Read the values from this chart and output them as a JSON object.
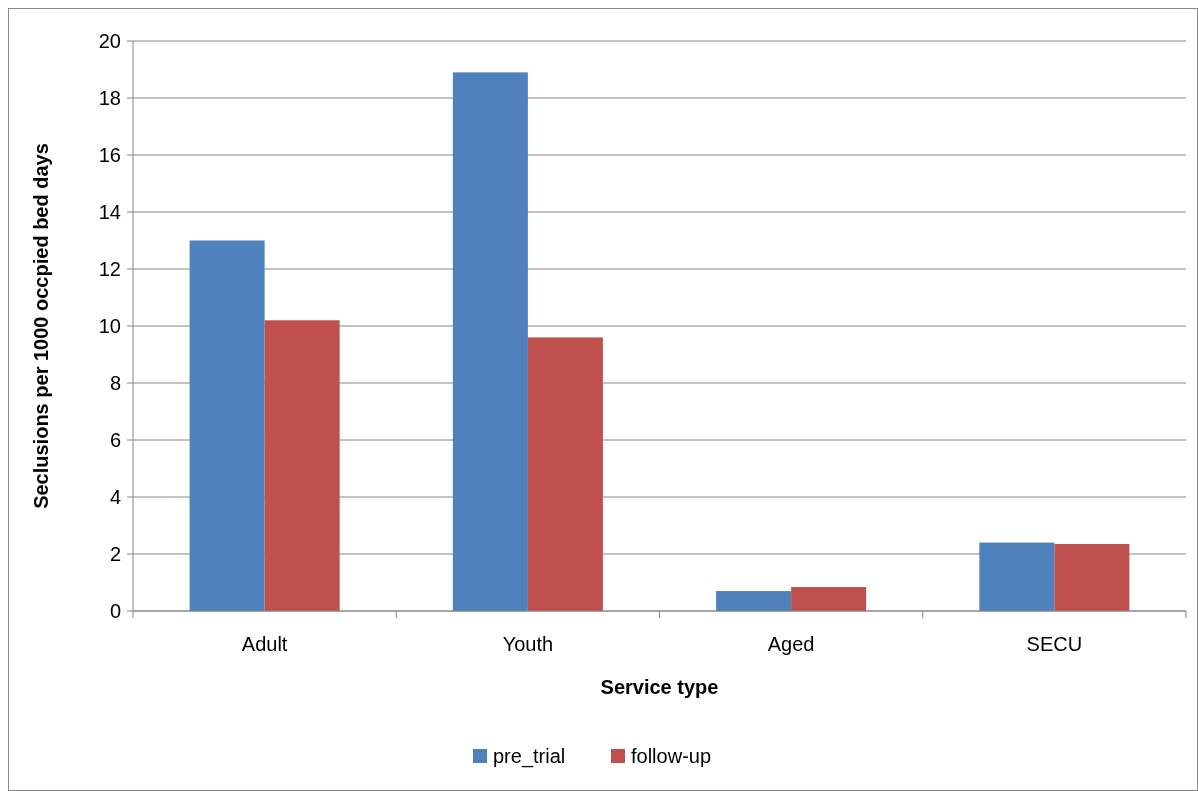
{
  "chart_data": {
    "type": "bar",
    "xlabel": "Service type",
    "ylabel": "Seclusions per 1000 occpied bed days",
    "categories": [
      "Adult",
      "Youth",
      "Aged",
      "SECU"
    ],
    "series": [
      {
        "name": "pre_trial",
        "color": "#4f81bd",
        "values": [
          13.0,
          18.9,
          0.7,
          2.4
        ]
      },
      {
        "name": "follow-up",
        "color": "#c0504d",
        "values": [
          10.2,
          9.6,
          0.84,
          2.35
        ]
      }
    ],
    "ylim": [
      0,
      20
    ],
    "yticks": [
      0,
      2,
      4,
      6,
      8,
      10,
      12,
      14,
      16,
      18,
      20
    ],
    "grid": "y",
    "legend": "bottom"
  }
}
